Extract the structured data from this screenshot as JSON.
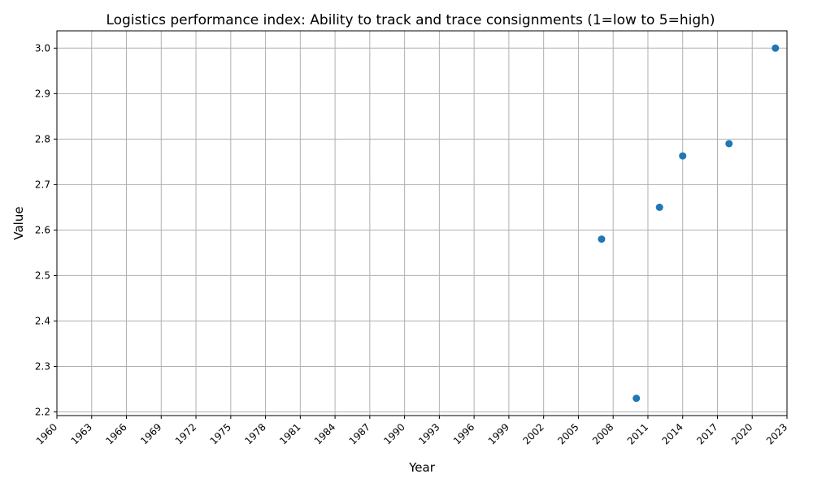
{
  "chart_data": {
    "type": "scatter",
    "title": "Logistics performance index: Ability to track and trace consignments (1=low to 5=high)",
    "xlabel": "Year",
    "ylabel": "Value",
    "xlim": [
      1960,
      2023
    ],
    "ylim": [
      2.192,
      3.038
    ],
    "x_ticks": [
      1960,
      1963,
      1966,
      1969,
      1972,
      1975,
      1978,
      1981,
      1984,
      1987,
      1990,
      1993,
      1996,
      1999,
      2002,
      2005,
      2008,
      2011,
      2014,
      2017,
      2020,
      2023
    ],
    "y_ticks": [
      2.2,
      2.3,
      2.4,
      2.5,
      2.6,
      2.7,
      2.8,
      2.9,
      3.0
    ],
    "grid": true,
    "color": "#1f77b4",
    "points": [
      {
        "x": 2007,
        "y": 2.58
      },
      {
        "x": 2010,
        "y": 2.23
      },
      {
        "x": 2012,
        "y": 2.65
      },
      {
        "x": 2014,
        "y": 2.763
      },
      {
        "x": 2018,
        "y": 2.79
      },
      {
        "x": 2022,
        "y": 3.0
      }
    ]
  }
}
